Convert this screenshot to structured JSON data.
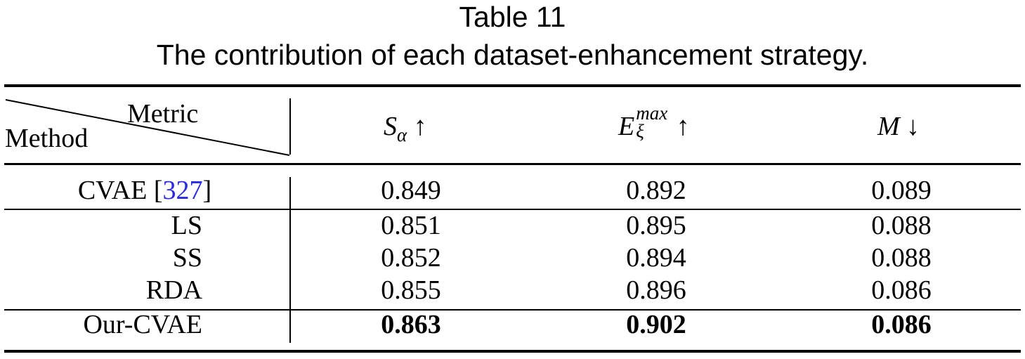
{
  "caption": {
    "label": "Table 11",
    "title": "The contribution of each dataset-enhancement strategy."
  },
  "header": {
    "diag_top": "Metric",
    "diag_bottom": "Method",
    "col1": {
      "main": "S",
      "sub": "α",
      "arrow": "↑"
    },
    "col2": {
      "main": "E",
      "sup": "max",
      "sub": "ξ",
      "arrow": "↑"
    },
    "col3": {
      "main": "M",
      "arrow": "↓"
    }
  },
  "rows": [
    {
      "method": "CVAE [",
      "ref": "327",
      "method_end": "]",
      "s": "0.849",
      "e": "0.892",
      "m": "0.089"
    },
    {
      "method": "LS",
      "s": "0.851",
      "e": "0.895",
      "m": "0.088"
    },
    {
      "method": "SS",
      "s": "0.852",
      "e": "0.894",
      "m": "0.088"
    },
    {
      "method": "RDA",
      "s": "0.855",
      "e": "0.896",
      "m": "0.086"
    },
    {
      "method": "Our-CVAE",
      "s": "0.863",
      "e": "0.902",
      "m": "0.086",
      "bold": true
    }
  ],
  "colors": {
    "ref_link": "#2a2ae0"
  }
}
